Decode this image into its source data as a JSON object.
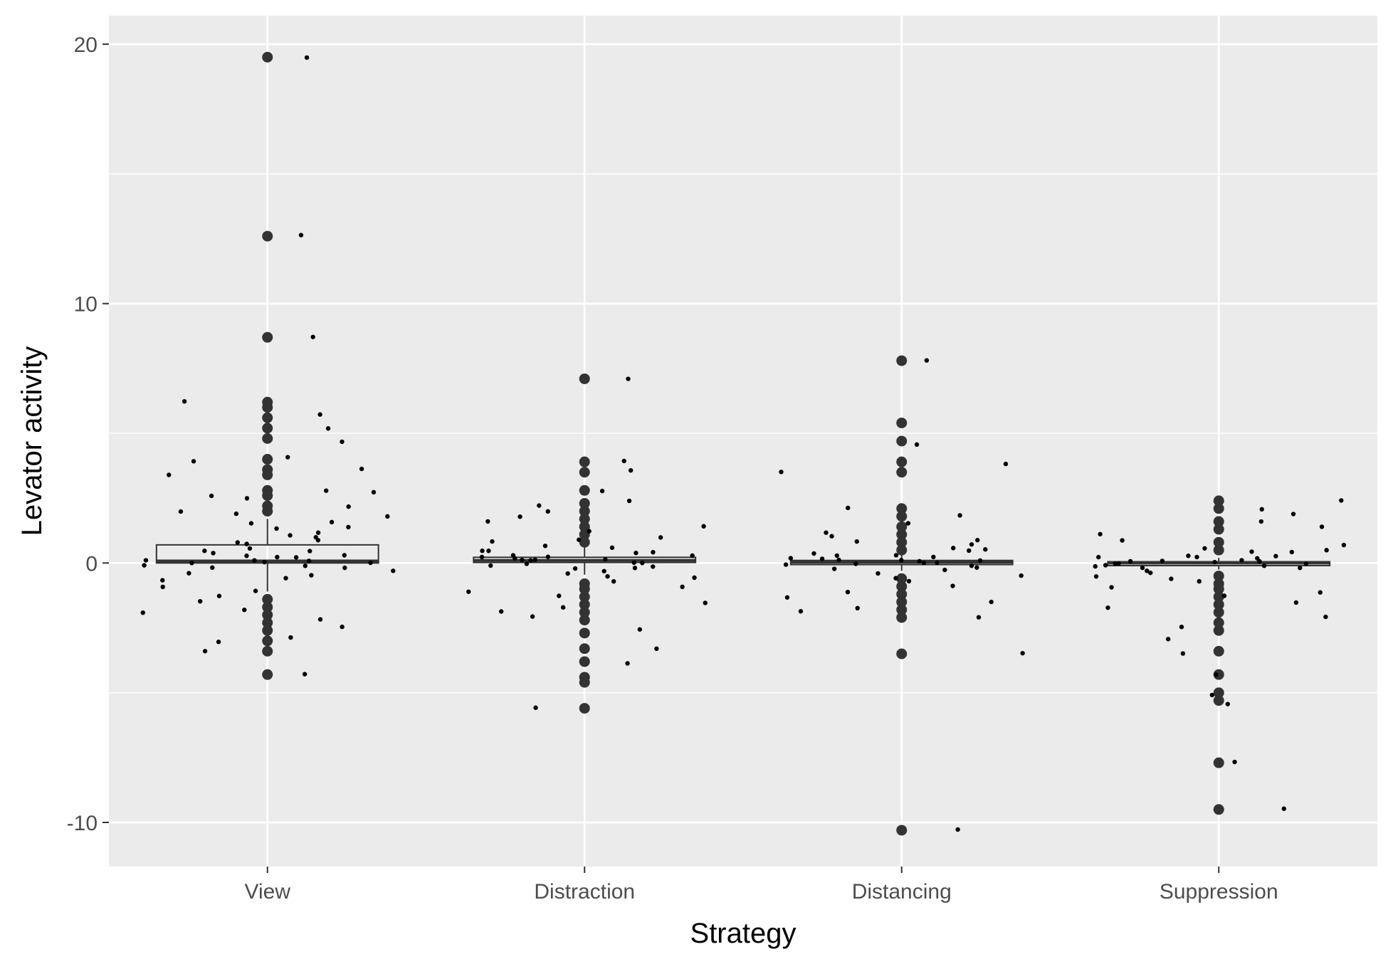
{
  "chart_data": {
    "type": "scatter",
    "overlay": "boxplot",
    "title": "",
    "xlabel": "Strategy",
    "ylabel": "Levator activity",
    "categories": [
      "View",
      "Distraction",
      "Distancing",
      "Suppression"
    ],
    "y_ticks": [
      -10,
      0,
      10,
      20
    ],
    "y_tick_labels": [
      "-10",
      "0",
      "10",
      "20"
    ],
    "ylim": [
      -11.7,
      21.1
    ],
    "grid": true,
    "legend": "none",
    "colors": {
      "panel": "#EBEBEB",
      "grid": "#FFFFFF",
      "points": "#000000",
      "outliers": "#333333",
      "box": "#333333",
      "tick_text": "#4D4D4D",
      "title_text": "#000000"
    },
    "boxes": [
      {
        "category": "View",
        "q1": 0.0,
        "median": 0.08,
        "q3": 0.7,
        "whisker_low": -1.1,
        "whisker_high": 1.7
      },
      {
        "category": "Distraction",
        "q1": 0.02,
        "median": 0.1,
        "q3": 0.22,
        "whisker_low": -0.45,
        "whisker_high": 0.6
      },
      {
        "category": "Distancing",
        "q1": -0.06,
        "median": 0.03,
        "q3": 0.1,
        "whisker_low": -0.3,
        "whisker_high": 0.32
      },
      {
        "category": "Suppression",
        "q1": -0.1,
        "median": 0.0,
        "q3": 0.05,
        "whisker_low": -0.25,
        "whisker_high": 0.2
      }
    ],
    "outliers": [
      {
        "category": "View",
        "values": [
          19.5,
          12.6,
          8.7,
          6.2,
          6.0,
          5.6,
          5.2,
          4.8,
          4.0,
          3.6,
          3.4,
          2.8,
          2.6,
          2.2,
          2.0,
          -1.4,
          -1.7,
          -2.0,
          -2.3,
          -2.6,
          -3.0,
          -3.4,
          -4.3
        ]
      },
      {
        "category": "Distraction",
        "values": [
          7.1,
          3.9,
          3.5,
          2.8,
          2.3,
          2.0,
          1.7,
          1.4,
          1.1,
          0.8,
          -0.8,
          -1.0,
          -1.3,
          -1.6,
          -1.9,
          -2.2,
          -2.7,
          -3.3,
          -3.8,
          -4.4,
          -4.6,
          -5.6
        ]
      },
      {
        "category": "Distancing",
        "values": [
          7.8,
          5.4,
          4.7,
          3.9,
          3.5,
          2.1,
          1.8,
          1.4,
          1.1,
          0.8,
          0.5,
          -0.6,
          -0.9,
          -1.2,
          -1.5,
          -1.8,
          -2.1,
          -3.5,
          -10.3
        ]
      },
      {
        "category": "Suppression",
        "values": [
          2.4,
          2.1,
          1.6,
          1.3,
          0.8,
          0.5,
          -0.5,
          -0.8,
          -1.0,
          -1.3,
          -1.6,
          -1.9,
          -2.3,
          -2.6,
          -3.4,
          -4.3,
          -5.0,
          -5.3,
          -7.7,
          -9.5
        ]
      }
    ],
    "jitter_points": {
      "View": [
        19.5,
        12.6,
        8.7,
        6.2,
        5.7,
        5.2,
        4.7,
        4.1,
        3.9,
        3.6,
        3.4,
        2.8,
        2.6,
        2.7,
        2.5,
        2.2,
        2.0,
        1.9,
        1.8,
        1.6,
        1.5,
        1.4,
        1.3,
        1.2,
        1.1,
        1.0,
        0.9,
        0.8,
        0.7,
        0.6,
        0.5,
        0.5,
        0.4,
        0.3,
        0.3,
        0.2,
        0.2,
        0.1,
        0.1,
        0.1,
        0.0,
        0.0,
        0.0,
        -0.1,
        -0.1,
        -0.2,
        -0.2,
        -0.3,
        -0.4,
        -0.5,
        -0.6,
        -0.7,
        -0.9,
        -1.1,
        -1.3,
        -1.5,
        -1.8,
        -1.9,
        -2.2,
        -2.5,
        -2.9,
        -3.0,
        -3.4,
        -4.3
      ],
      "Distraction": [
        7.1,
        3.9,
        3.6,
        2.8,
        2.4,
        2.2,
        2.0,
        1.8,
        1.6,
        1.4,
        1.2,
        1.0,
        0.9,
        0.8,
        0.7,
        0.6,
        0.5,
        0.5,
        0.4,
        0.4,
        0.3,
        0.3,
        0.2,
        0.2,
        0.2,
        0.1,
        0.1,
        0.1,
        0.1,
        0.0,
        0.0,
        0.0,
        -0.1,
        -0.1,
        -0.2,
        -0.2,
        -0.3,
        -0.4,
        -0.5,
        -0.6,
        -0.7,
        -0.9,
        -1.1,
        -1.3,
        -1.5,
        -1.7,
        -1.9,
        -2.1,
        -2.6,
        -3.3,
        -3.9,
        -5.6
      ],
      "Distancing": [
        7.8,
        4.6,
        3.8,
        3.5,
        2.1,
        1.8,
        1.5,
        1.2,
        1.0,
        0.9,
        0.8,
        0.7,
        0.6,
        0.5,
        0.5,
        0.4,
        0.3,
        0.3,
        0.2,
        0.2,
        0.2,
        0.1,
        0.1,
        0.1,
        0.1,
        0.0,
        0.0,
        0.0,
        -0.1,
        -0.1,
        -0.2,
        -0.2,
        -0.3,
        -0.4,
        -0.5,
        -0.6,
        -0.7,
        -0.9,
        -1.1,
        -1.3,
        -1.5,
        -1.7,
        -1.9,
        -2.1,
        -3.5,
        -10.3
      ],
      "Suppression": [
        2.4,
        2.1,
        1.9,
        1.6,
        1.4,
        1.1,
        0.9,
        0.7,
        0.6,
        0.5,
        0.4,
        0.4,
        0.3,
        0.3,
        0.2,
        0.2,
        0.2,
        0.1,
        0.1,
        0.1,
        0.1,
        0.0,
        0.0,
        0.0,
        0.0,
        -0.1,
        -0.1,
        -0.1,
        -0.2,
        -0.2,
        -0.3,
        -0.4,
        -0.5,
        -0.6,
        -0.7,
        -0.9,
        -1.1,
        -1.3,
        -1.5,
        -1.7,
        -2.1,
        -2.5,
        -2.9,
        -3.5,
        -4.3,
        -5.1,
        -5.4,
        -7.7,
        -9.5
      ]
    }
  }
}
